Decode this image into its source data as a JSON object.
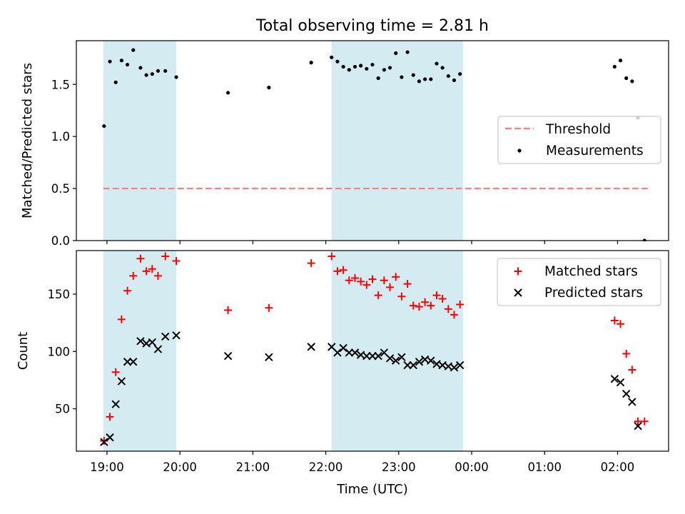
{
  "chart_data": [
    {
      "type": "scatter",
      "title": "Total observing time = 2.81 h",
      "xlabel": "",
      "ylabel": "Matched/Predicted stars",
      "x_unit": "hours since 19:00 UTC",
      "xlim": [
        -0.42,
        7.7
      ],
      "ylim": [
        0.0,
        1.92
      ],
      "yticks": [
        0.0,
        0.5,
        1.0,
        1.5
      ],
      "ytick_labels": [
        "0.0",
        "0.5",
        "1.0",
        "1.5"
      ],
      "shaded_intervals": [
        [
          -0.05,
          0.95
        ],
        [
          3.08,
          4.88
        ]
      ],
      "shade_color": "#d4ebf1",
      "threshold": {
        "name": "Threshold",
        "y": 0.5,
        "x_range": [
          -0.05,
          7.45
        ],
        "color": "#ff7f7f"
      },
      "series": [
        {
          "name": "Measurements",
          "color": "#000000",
          "points": [
            [
              -0.04,
              1.1
            ],
            [
              0.04,
              1.72
            ],
            [
              0.12,
              1.52
            ],
            [
              0.2,
              1.73
            ],
            [
              0.28,
              1.69
            ],
            [
              0.36,
              1.83
            ],
            [
              0.46,
              1.66
            ],
            [
              0.54,
              1.59
            ],
            [
              0.62,
              1.6
            ],
            [
              0.7,
              1.63
            ],
            [
              0.8,
              1.63
            ],
            [
              0.95,
              1.57
            ],
            [
              1.66,
              1.42
            ],
            [
              2.22,
              1.47
            ],
            [
              2.8,
              1.71
            ],
            [
              3.08,
              1.76
            ],
            [
              3.16,
              1.72
            ],
            [
              3.24,
              1.67
            ],
            [
              3.32,
              1.64
            ],
            [
              3.4,
              1.67
            ],
            [
              3.48,
              1.68
            ],
            [
              3.56,
              1.65
            ],
            [
              3.64,
              1.69
            ],
            [
              3.72,
              1.56
            ],
            [
              3.8,
              1.64
            ],
            [
              3.88,
              1.66
            ],
            [
              3.96,
              1.8
            ],
            [
              4.04,
              1.57
            ],
            [
              4.12,
              1.81
            ],
            [
              4.2,
              1.59
            ],
            [
              4.28,
              1.53
            ],
            [
              4.36,
              1.55
            ],
            [
              4.44,
              1.55
            ],
            [
              4.52,
              1.7
            ],
            [
              4.6,
              1.66
            ],
            [
              4.68,
              1.58
            ],
            [
              4.76,
              1.54
            ],
            [
              4.84,
              1.6
            ],
            [
              6.96,
              1.67
            ],
            [
              7.04,
              1.73
            ],
            [
              7.12,
              1.56
            ],
            [
              7.2,
              1.53
            ],
            [
              7.28,
              1.18
            ],
            [
              7.37,
              0.0
            ]
          ]
        }
      ],
      "legend_position": "center-right"
    },
    {
      "type": "scatter",
      "title": "",
      "xlabel": "Time (UTC)",
      "ylabel": "Count",
      "x_unit": "hours since 19:00 UTC",
      "xlim": [
        -0.42,
        7.7
      ],
      "ylim": [
        13,
        188
      ],
      "yticks": [
        50,
        100,
        150
      ],
      "ytick_labels": [
        "50",
        "100",
        "150"
      ],
      "xticks": [
        0,
        1,
        2,
        3,
        4,
        5,
        6,
        7
      ],
      "xtick_labels": [
        "19:00",
        "20:00",
        "21:00",
        "22:00",
        "23:00",
        "00:00",
        "01:00",
        "02:00"
      ],
      "shaded_intervals": [
        [
          -0.05,
          0.95
        ],
        [
          3.08,
          4.88
        ]
      ],
      "shade_color": "#d4ebf1",
      "series": [
        {
          "name": "Matched stars",
          "marker": "+",
          "color": "#ff0000",
          "points": [
            [
              -0.04,
              22
            ],
            [
              0.04,
              43
            ],
            [
              0.12,
              82
            ],
            [
              0.2,
              128
            ],
            [
              0.28,
              153
            ],
            [
              0.36,
              166
            ],
            [
              0.46,
              181
            ],
            [
              0.54,
              170
            ],
            [
              0.62,
              172
            ],
            [
              0.7,
              166
            ],
            [
              0.8,
              183
            ],
            [
              0.95,
              179
            ],
            [
              1.66,
              136
            ],
            [
              2.22,
              138
            ],
            [
              2.8,
              177
            ],
            [
              3.08,
              183
            ],
            [
              3.16,
              170
            ],
            [
              3.24,
              171
            ],
            [
              3.32,
              162
            ],
            [
              3.4,
              164
            ],
            [
              3.48,
              161
            ],
            [
              3.56,
              158
            ],
            [
              3.64,
              163
            ],
            [
              3.72,
              149
            ],
            [
              3.8,
              162
            ],
            [
              3.88,
              156
            ],
            [
              3.96,
              165
            ],
            [
              4.04,
              148
            ],
            [
              4.12,
              159
            ],
            [
              4.2,
              140
            ],
            [
              4.28,
              139
            ],
            [
              4.36,
              143
            ],
            [
              4.44,
              140
            ],
            [
              4.52,
              149
            ],
            [
              4.6,
              146
            ],
            [
              4.68,
              137
            ],
            [
              4.76,
              132
            ],
            [
              4.84,
              141
            ],
            [
              6.96,
              127
            ],
            [
              7.04,
              124
            ],
            [
              7.12,
              98
            ],
            [
              7.2,
              84
            ],
            [
              7.28,
              39
            ],
            [
              7.37,
              39
            ]
          ]
        },
        {
          "name": "Predicted stars",
          "marker": "x",
          "color": "#000000",
          "points": [
            [
              -0.04,
              21
            ],
            [
              0.04,
              25
            ],
            [
              0.12,
              54
            ],
            [
              0.2,
              74
            ],
            [
              0.28,
              91
            ],
            [
              0.36,
              91
            ],
            [
              0.46,
              109
            ],
            [
              0.54,
              107
            ],
            [
              0.62,
              108
            ],
            [
              0.7,
              102
            ],
            [
              0.8,
              113
            ],
            [
              0.95,
              114
            ],
            [
              1.66,
              96
            ],
            [
              2.22,
              95
            ],
            [
              2.8,
              104
            ],
            [
              3.08,
              104
            ],
            [
              3.16,
              99
            ],
            [
              3.24,
              103
            ],
            [
              3.32,
              99
            ],
            [
              3.4,
              99
            ],
            [
              3.48,
              97
            ],
            [
              3.56,
              96
            ],
            [
              3.64,
              96
            ],
            [
              3.72,
              96
            ],
            [
              3.8,
              99
            ],
            [
              3.88,
              94
            ],
            [
              3.96,
              92
            ],
            [
              4.04,
              95
            ],
            [
              4.12,
              88
            ],
            [
              4.2,
              88
            ],
            [
              4.28,
              91
            ],
            [
              4.36,
              93
            ],
            [
              4.44,
              92
            ],
            [
              4.52,
              89
            ],
            [
              4.6,
              88
            ],
            [
              4.68,
              87
            ],
            [
              4.76,
              86
            ],
            [
              4.84,
              88
            ],
            [
              6.96,
              76
            ],
            [
              7.04,
              73
            ],
            [
              7.12,
              63
            ],
            [
              7.2,
              56
            ],
            [
              7.28,
              35
            ]
          ]
        }
      ],
      "legend_position": "top-right"
    }
  ]
}
